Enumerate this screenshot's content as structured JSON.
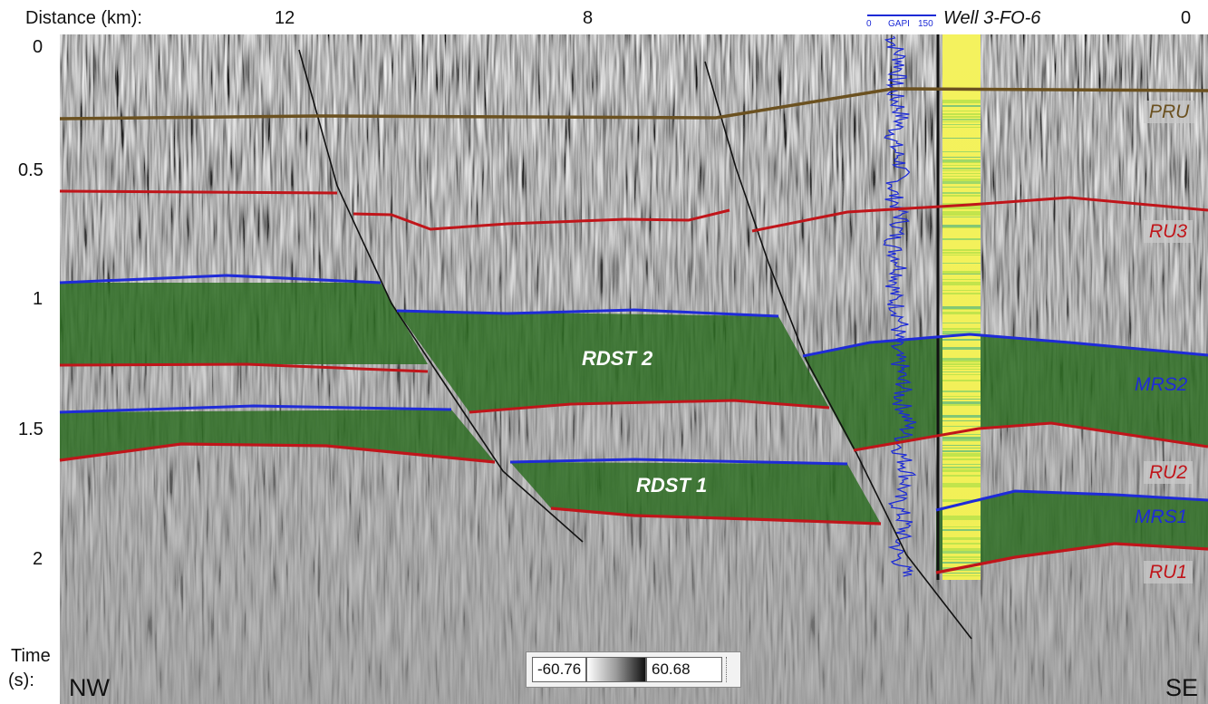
{
  "axes": {
    "distance_label": "Distance (km):",
    "distance_ticks": [
      "12",
      "8",
      "0"
    ],
    "time_ticks": [
      "0",
      "0.5",
      "1",
      "1.5",
      "2"
    ],
    "time_label_line1": "Time",
    "time_label_line2": "(s):"
  },
  "orientation": {
    "left": "NW",
    "right": "SE"
  },
  "well": {
    "name": "Well 3-FO-6",
    "gr_log_label_min": "0",
    "gr_log_label_unit": "GAPI",
    "gr_log_label_max": "150"
  },
  "horizons": {
    "pru": "PRU",
    "ru3": "RU3",
    "mrs2": "MRS2",
    "ru2": "RU2",
    "mrs1": "MRS1",
    "ru1": "RU1"
  },
  "units": {
    "upper": "RDST 2",
    "lower": "RDST 1"
  },
  "colorbar": {
    "min": "-60.76",
    "max": "60.68"
  },
  "colors": {
    "pru": "#6b5120",
    "unconformity": "#c0151a",
    "mfs": "#1f2bd8",
    "unit_fill": "#2a6b1e",
    "fault": "#111111",
    "well_track": "#f4f25e",
    "gr_log": "#1d2bd6"
  }
}
